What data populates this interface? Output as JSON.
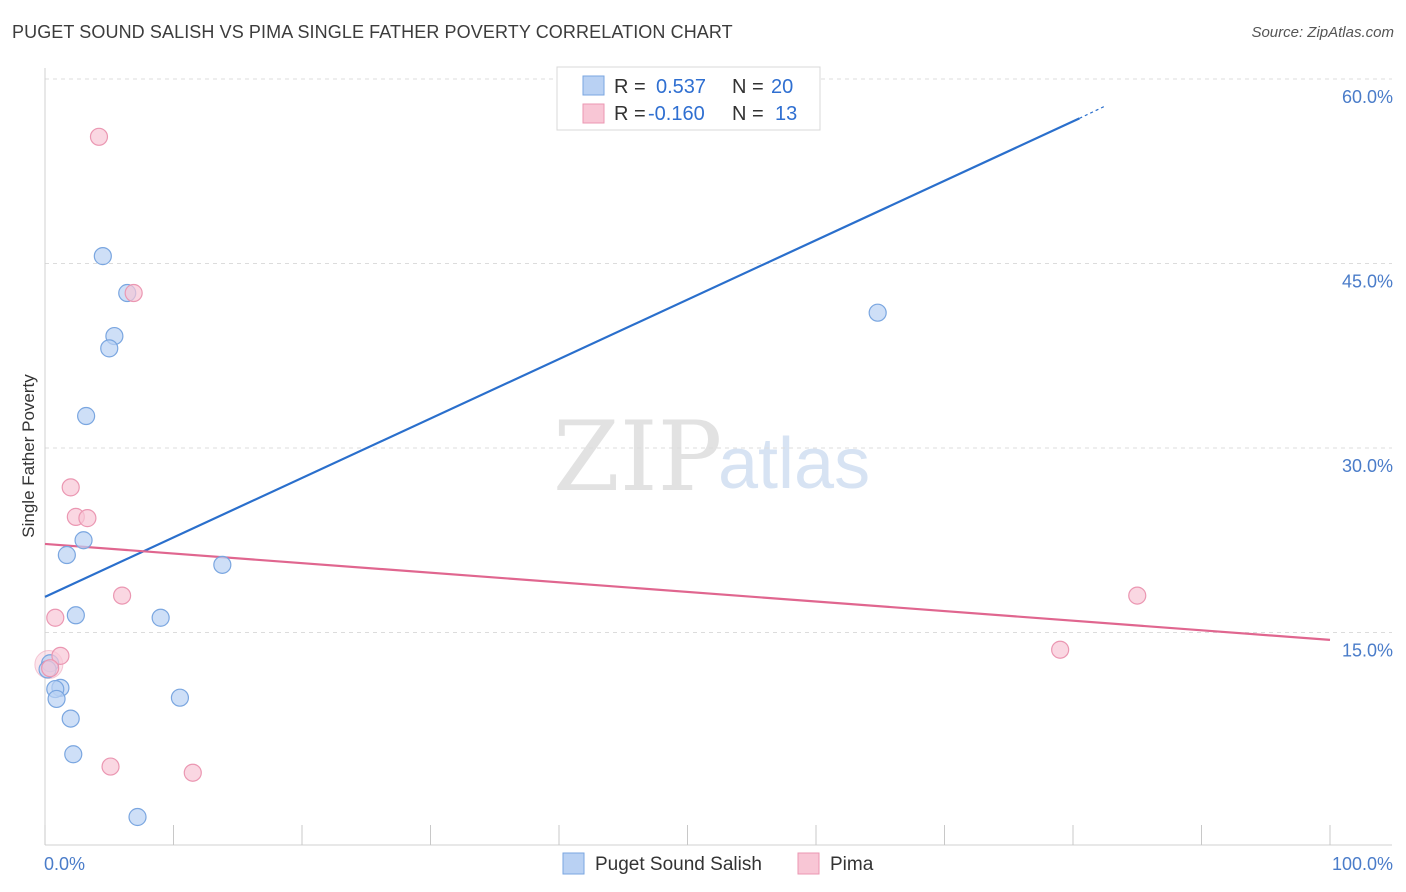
{
  "header": {
    "title": "PUGET SOUND SALISH VS PIMA SINGLE FATHER POVERTY CORRELATION CHART",
    "source": "Source: ZipAtlas.com"
  },
  "watermark": {
    "part1": "ZIP",
    "part2": "atlas"
  },
  "colors": {
    "blue_fill": "#b9d1f3",
    "blue_stroke": "#7aa6e0",
    "blue_line": "#2a6fcc",
    "pink_fill": "#f8c6d5",
    "pink_stroke": "#eb97b2",
    "pink_line": "#e0668f"
  },
  "chart_data": {
    "type": "scatter",
    "title": "PUGET SOUND SALISH VS PIMA SINGLE FATHER POVERTY CORRELATION CHART",
    "xlabel": "",
    "ylabel": "Single Father Poverty",
    "xlim": [
      0,
      100
    ],
    "ylim": [
      0,
      60
    ],
    "x_tick_labels": [
      "0.0%",
      "100.0%"
    ],
    "y_ticks": [
      15,
      30,
      45,
      60
    ],
    "y_tick_labels": [
      "15.0%",
      "30.0%",
      "45.0%",
      "60.0%"
    ],
    "legend_position": "top-center",
    "legend_stats": [
      {
        "r_label": "R =",
        "r_value": "0.537",
        "n_label": "N =",
        "n_value": "20"
      },
      {
        "r_label": "R =",
        "r_value": "-0.160",
        "n_label": "N =",
        "n_value": "13"
      }
    ],
    "series": [
      {
        "name": "Puget Sound Salish",
        "points": [
          [
            4.5,
            45.6
          ],
          [
            6.4,
            42.6
          ],
          [
            5.4,
            39.1
          ],
          [
            5.0,
            38.1
          ],
          [
            3.2,
            32.6
          ],
          [
            3.0,
            22.5
          ],
          [
            1.7,
            21.3
          ],
          [
            13.8,
            20.5
          ],
          [
            2.4,
            16.4
          ],
          [
            9.0,
            16.2
          ],
          [
            0.4,
            12.5
          ],
          [
            1.2,
            10.5
          ],
          [
            0.8,
            10.4
          ],
          [
            0.9,
            9.6
          ],
          [
            10.5,
            9.7
          ],
          [
            2.0,
            8.0
          ],
          [
            2.2,
            5.1
          ],
          [
            7.2,
            0.0
          ],
          [
            64.8,
            41.0
          ],
          [
            0.2,
            12.0
          ]
        ],
        "trend": {
          "x": [
            0,
            80.5
          ],
          "y": [
            17.9,
            56.8
          ],
          "dash_x": [
            80.5,
            82.5
          ],
          "dash_y": [
            56.8,
            57.8
          ]
        }
      },
      {
        "name": "Pima",
        "points": [
          [
            4.2,
            55.3
          ],
          [
            6.9,
            42.6
          ],
          [
            2.0,
            26.8
          ],
          [
            2.4,
            24.4
          ],
          [
            3.3,
            24.3
          ],
          [
            6.0,
            18.0
          ],
          [
            0.8,
            16.2
          ],
          [
            1.2,
            13.1
          ],
          [
            0.4,
            12.1
          ],
          [
            5.1,
            4.1
          ],
          [
            11.5,
            3.6
          ],
          [
            85.0,
            18.0
          ],
          [
            79.0,
            13.6
          ]
        ],
        "trend": {
          "x": [
            0,
            100
          ],
          "y": [
            22.2,
            14.4
          ]
        }
      }
    ]
  }
}
